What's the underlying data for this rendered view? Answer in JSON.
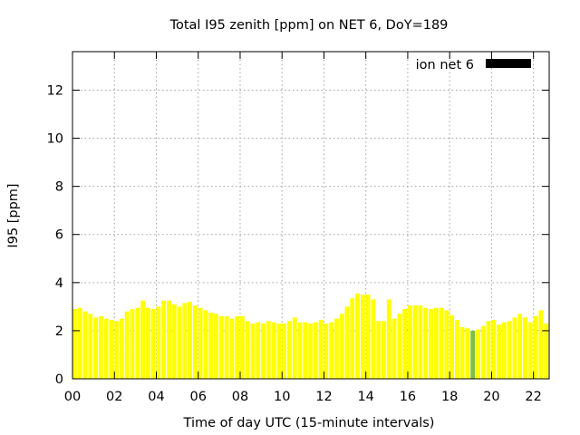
{
  "chart_data": {
    "type": "bar",
    "title": "Total I95 zenith [ppm] on NET 6, DoY=189",
    "xlabel": "Time of day UTC (15-minute intervals)",
    "ylabel": "I95 [ppm]",
    "xlim": [
      0,
      22.75
    ],
    "ylim": [
      0,
      13.6
    ],
    "xtick_labels": [
      "00",
      "02",
      "04",
      "06",
      "08",
      "10",
      "12",
      "14",
      "16",
      "18",
      "20",
      "22"
    ],
    "xtick_values": [
      0,
      2,
      4,
      6,
      8,
      10,
      12,
      14,
      16,
      18,
      20,
      22
    ],
    "ytick_labels": [
      "0",
      "2",
      "4",
      "6",
      "8",
      "10",
      "12"
    ],
    "ytick_values": [
      0,
      2,
      4,
      6,
      8,
      10,
      12
    ],
    "grid": true,
    "legend": {
      "position": "top-right",
      "entries": [
        {
          "label": "ion net 6",
          "color": "#000000"
        }
      ]
    },
    "bar_color": "#ffff00",
    "highlight_color": "#7cc043",
    "highlight_index": 76,
    "bar_interval_hours": 0.25,
    "values": [
      2.9,
      2.95,
      2.8,
      2.7,
      2.55,
      2.6,
      2.5,
      2.45,
      2.4,
      2.5,
      2.8,
      2.9,
      2.95,
      3.25,
      2.95,
      2.9,
      3.0,
      3.25,
      3.25,
      3.1,
      3.0,
      3.15,
      3.2,
      3.05,
      2.95,
      2.85,
      2.75,
      2.7,
      2.6,
      2.6,
      2.5,
      2.6,
      2.6,
      2.4,
      2.3,
      2.35,
      2.3,
      2.4,
      2.35,
      2.3,
      2.3,
      2.4,
      2.55,
      2.35,
      2.35,
      2.3,
      2.35,
      2.45,
      2.3,
      2.35,
      2.5,
      2.7,
      3.0,
      3.35,
      3.55,
      3.5,
      3.5,
      3.3,
      2.4,
      2.4,
      3.3,
      2.5,
      2.7,
      2.9,
      3.05,
      3.05,
      3.05,
      2.95,
      2.9,
      2.95,
      2.95,
      2.85,
      2.65,
      2.45,
      2.15,
      2.1,
      2.0,
      2.05,
      2.2,
      2.4,
      2.45,
      2.25,
      2.35,
      2.4,
      2.55,
      2.7,
      2.55,
      2.35,
      2.6,
      2.85,
      2.3
    ]
  }
}
